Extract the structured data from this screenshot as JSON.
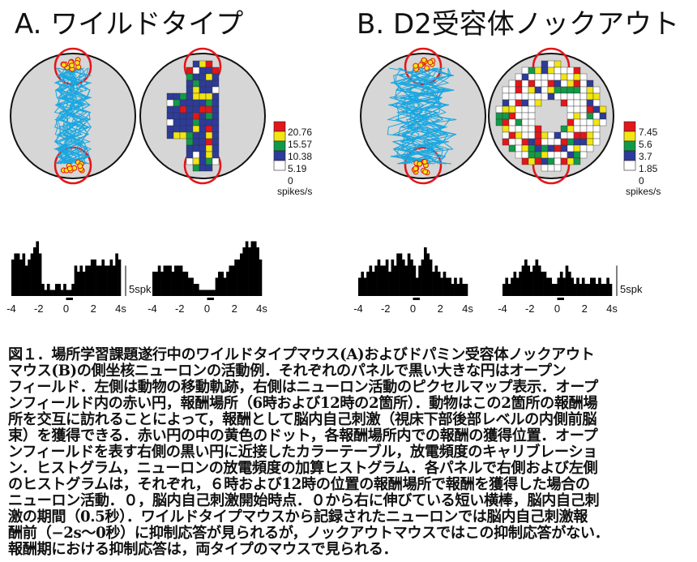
{
  "titles": {
    "a": "A. ワイルドタイプ",
    "b": "B. D2受容体ノックアウト"
  },
  "colors": {
    "red": "#e3161a",
    "orange": "#f7a11a",
    "yellow": "#f2e513",
    "green": "#129a48",
    "blue": "#2d3c9a",
    "white": "#ffffff",
    "arena": "#d6d6d6",
    "trajectory": "#19a7e0",
    "histogram": "#000000"
  },
  "colorbar_a": {
    "values": [
      "20.76",
      "15.57",
      "10.38",
      "5.19",
      "0"
    ],
    "unit": "spikes/s"
  },
  "colorbar_b": {
    "values": [
      "7.45",
      "5.6",
      "3.7",
      "1.85",
      "0"
    ],
    "unit": "spikes/s"
  },
  "chart_data": [
    {
      "type": "bar",
      "panel": "A-left",
      "x": [
        -4,
        -3.8,
        -3.6,
        -3.4,
        -3.2,
        -3,
        -2.8,
        -2.6,
        -2.4,
        -2.2,
        -2,
        -1.8,
        -1.6,
        -1.4,
        -1.2,
        -1,
        -0.8,
        -0.6,
        -0.4,
        -0.2,
        0,
        0.2,
        0.4,
        0.6,
        0.8,
        1,
        1.2,
        1.4,
        1.6,
        1.8,
        2,
        2.2,
        2.4,
        2.6,
        2.8,
        3,
        3.2,
        3.4,
        3.6,
        3.8
      ],
      "values": [
        6,
        7,
        7,
        6,
        7,
        5,
        6,
        7,
        8,
        9,
        7,
        2,
        1,
        2,
        1,
        1,
        2,
        2,
        1,
        2,
        1,
        1,
        2,
        5,
        4,
        5,
        4,
        5,
        5,
        6,
        6,
        5,
        5,
        6,
        5,
        5,
        6,
        5,
        7,
        6
      ],
      "xlim": [
        -4,
        4
      ],
      "tick_labels": [
        "-4",
        "-2",
        "0",
        "2",
        "4s"
      ],
      "scale_bar": "5spk"
    },
    {
      "type": "bar",
      "panel": "A-right",
      "x": [
        -4,
        -3.8,
        -3.6,
        -3.4,
        -3.2,
        -3,
        -2.8,
        -2.6,
        -2.4,
        -2.2,
        -2,
        -1.8,
        -1.6,
        -1.4,
        -1.2,
        -1,
        -0.8,
        -0.6,
        -0.4,
        -0.2,
        0,
        0.2,
        0.4,
        0.6,
        0.8,
        1,
        1.2,
        1.4,
        1.6,
        1.8,
        2,
        2.2,
        2.4,
        2.6,
        2.8,
        3,
        3.2,
        3.4,
        3.6,
        3.8
      ],
      "values": [
        4,
        4,
        5,
        4,
        5,
        5,
        5,
        4,
        5,
        5,
        5,
        4,
        4,
        3,
        3,
        2,
        2,
        1,
        1,
        1,
        1,
        1,
        1,
        3,
        4,
        4,
        3,
        4,
        5,
        5,
        6,
        6,
        7,
        8,
        9,
        8,
        9,
        9,
        8,
        6
      ],
      "xlim": [
        -4,
        4
      ],
      "tick_labels": [
        "-4",
        "-2",
        "0",
        "2",
        "4s"
      ],
      "scale_bar": ""
    },
    {
      "type": "bar",
      "panel": "B-left",
      "x": [
        -4,
        -3.8,
        -3.6,
        -3.4,
        -3.2,
        -3,
        -2.8,
        -2.6,
        -2.4,
        -2.2,
        -2,
        -1.8,
        -1.6,
        -1.4,
        -1.2,
        -1,
        -0.8,
        -0.6,
        -0.4,
        -0.2,
        0,
        0.2,
        0.4,
        0.6,
        0.8,
        1,
        1.2,
        1.4,
        1.6,
        1.8,
        2,
        2.2,
        2.4,
        2.6,
        2.8,
        3,
        3.2,
        3.4,
        3.6,
        3.8
      ],
      "values": [
        3,
        4,
        3,
        4,
        5,
        4,
        5,
        6,
        5,
        5,
        6,
        4,
        6,
        5,
        7,
        7,
        6,
        5,
        7,
        6,
        5,
        3,
        5,
        6,
        8,
        7,
        6,
        4,
        5,
        4,
        3,
        4,
        3,
        3,
        2,
        3,
        2,
        3,
        2,
        2
      ],
      "xlim": [
        -4,
        4
      ],
      "tick_labels": [
        "-4",
        "-2",
        "0",
        "2",
        "4s"
      ],
      "scale_bar": ""
    },
    {
      "type": "bar",
      "panel": "B-right",
      "x": [
        -4,
        -3.8,
        -3.6,
        -3.4,
        -3.2,
        -3,
        -2.8,
        -2.6,
        -2.4,
        -2.2,
        -2,
        -1.8,
        -1.6,
        -1.4,
        -1.2,
        -1,
        -0.8,
        -0.6,
        -0.4,
        -0.2,
        0,
        0.2,
        0.4,
        0.6,
        0.8,
        1,
        1.2,
        1.4,
        1.6,
        1.8,
        2,
        2.2,
        2.4,
        2.6,
        2.8,
        3,
        3.2,
        3.4,
        3.6,
        3.8
      ],
      "values": [
        2,
        3,
        2,
        3,
        4,
        3,
        4,
        5,
        6,
        5,
        4,
        5,
        6,
        5,
        4,
        4,
        3,
        3,
        2,
        2,
        3,
        4,
        3,
        5,
        4,
        3,
        2,
        3,
        2,
        3,
        2,
        2,
        3,
        3,
        2,
        3,
        2,
        2,
        3,
        2
      ],
      "xlim": [
        -4,
        4
      ],
      "tick_labels": [
        "-4",
        "-2",
        "0",
        "2",
        "4s"
      ],
      "scale_bar": "5spk"
    }
  ],
  "caption": [
    "図１．場所学習課題遂行中のワイルドタイプマウス(A)およびドパミン受容体ノックアウト",
    "マウス(B)の側坐核ニューロンの活動例．それぞれのパネルで黒い大きな円はオープン",
    "フィールド．左側は動物の移動軌跡，右側はニューロン活動のピクセルマップ表示．オープ",
    "ンフィールド内の赤い円，報酬場所（6時および12時の2箇所）．動物はこの2箇所の報酬場",
    "所を交互に訪れることによって，報酬として脳内自己刺激（視床下部後部レベルの内側前脳",
    "束）を獲得できる．赤い円の中の黄色のドット，各報酬場所内での報酬の獲得位置．オープ",
    "ンフィールドを表す右側の黒い円に近接したカラーテーブル，放電頻度のキャリブレーショ",
    "ン．ヒストグラム，ニューロンの放電頻度の加算ヒストグラム．各パネルで右側および左側",
    "のヒストグラムは，それぞれ，６時および12時の位置の報酬場所で報酬を獲得した場合の",
    "ニューロン活動．０，脳内自己刺激開始時点．０から右に伸びている短い横棒，脳内自己刺",
    "激の期間（0.5秒）．ワイルドタイプマウスから記録されたニューロンでは脳内自己刺激報",
    "酬前（−2s〜0秒）に抑制応答が見られるが，ノックアウトマウスではこの抑制応答がない．",
    "報酬期における抑制応答は，両タイプのマウスで見られる．"
  ]
}
